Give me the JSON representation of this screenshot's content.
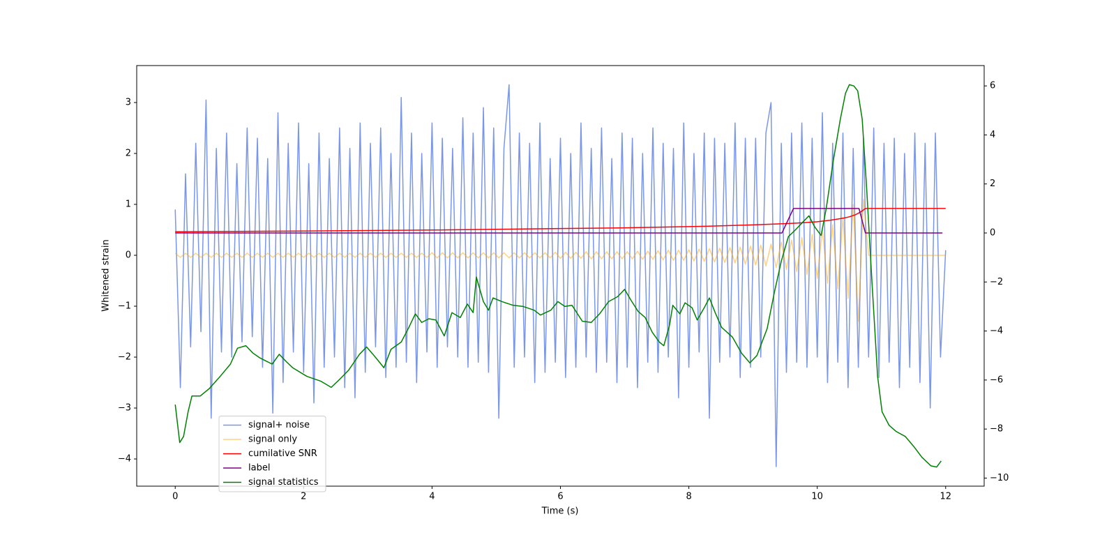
{
  "chart_data": {
    "type": "line",
    "xlabel": "Time (s)",
    "ylabel": "Whitened strain",
    "xlim": [
      -0.6,
      12.6
    ],
    "ylim": [
      -4.534,
      3.726
    ],
    "y2lim": [
      -10.33,
      6.83
    ],
    "xticks": [
      0,
      2,
      4,
      6,
      8,
      10,
      12
    ],
    "yticks": [
      {
        "value": -4,
        "label": "−4"
      },
      {
        "value": -3,
        "label": "−3"
      },
      {
        "value": -2,
        "label": "−2"
      },
      {
        "value": -1,
        "label": "−1"
      },
      0,
      1,
      2,
      3
    ],
    "y2ticks": [
      {
        "value": -10,
        "label": "−10"
      },
      {
        "value": -8,
        "label": "−8"
      },
      {
        "value": -6,
        "label": "−6"
      },
      {
        "value": -4,
        "label": "−4"
      },
      {
        "value": -2,
        "label": "−2"
      },
      0,
      2,
      4,
      6
    ],
    "legend": "lower left",
    "series": [
      {
        "name": "signal+ noise",
        "color": "#4169e1",
        "opacity": 0.7,
        "x": [
          0,
          0.08,
          0.16,
          0.24,
          0.32,
          0.4,
          0.48,
          0.56,
          0.64,
          0.72,
          0.8,
          0.88,
          0.96,
          1.04,
          1.12,
          1.2,
          1.28,
          1.36,
          1.44,
          1.52,
          1.6,
          1.68,
          1.76,
          1.84,
          1.92,
          2,
          2.08,
          2.16,
          2.24,
          2.32,
          2.4,
          2.48,
          2.56,
          2.64,
          2.72,
          2.8,
          2.88,
          2.96,
          3.04,
          3.12,
          3.2,
          3.28,
          3.36,
          3.44,
          3.52,
          3.6,
          3.68,
          3.76,
          3.84,
          3.92,
          4,
          4.08,
          4.16,
          4.24,
          4.32,
          4.4,
          4.48,
          4.56,
          4.64,
          4.72,
          4.8,
          4.88,
          4.96,
          5.04,
          5.12,
          5.2,
          5.28,
          5.36,
          5.44,
          5.52,
          5.6,
          5.68,
          5.76,
          5.84,
          5.92,
          6,
          6.08,
          6.16,
          6.24,
          6.32,
          6.4,
          6.48,
          6.56,
          6.64,
          6.72,
          6.8,
          6.88,
          6.96,
          7.04,
          7.12,
          7.2,
          7.28,
          7.36,
          7.44,
          7.52,
          7.6,
          7.68,
          7.76,
          7.84,
          7.92,
          8,
          8.08,
          8.16,
          8.24,
          8.32,
          8.4,
          8.48,
          8.56,
          8.64,
          8.72,
          8.8,
          8.88,
          8.96,
          9.04,
          9.12,
          9.2,
          9.28,
          9.36,
          9.44,
          9.52,
          9.6,
          9.68,
          9.76,
          9.84,
          9.92,
          10,
          10.08,
          10.16,
          10.24,
          10.32,
          10.4,
          10.48,
          10.56,
          10.64,
          10.72,
          10.8,
          10.88,
          10.96,
          11.04,
          11.12,
          11.2,
          11.28,
          11.36,
          11.44,
          11.52,
          11.6,
          11.68,
          11.76,
          11.84,
          11.92,
          12
        ],
        "values": [
          0.9,
          -2.6,
          1.6,
          -1.8,
          2.2,
          -1.5,
          3.05,
          -3.2,
          2.1,
          -1.9,
          2.4,
          -2.0,
          1.8,
          -1.7,
          2.5,
          -1.6,
          2.3,
          -2.2,
          1.9,
          -3.1,
          2.8,
          -2.5,
          2.2,
          -1.9,
          2.6,
          -2.3,
          1.8,
          -2.9,
          2.4,
          -2.2,
          1.9,
          -2.0,
          2.5,
          -2.6,
          2.1,
          -2.8,
          2.6,
          -2.3,
          2.2,
          -1.8,
          2.5,
          -2.4,
          2.0,
          -2.2,
          3.1,
          -2.1,
          2.4,
          -2.5,
          2.0,
          -1.9,
          2.6,
          -2.2,
          2.3,
          -1.8,
          2.1,
          -2.0,
          2.7,
          -2.2,
          2.4,
          -2.1,
          2.9,
          -2.3,
          2.5,
          -3.2,
          2.1,
          3.35,
          -2.2,
          2.4,
          -2.0,
          2.2,
          -2.5,
          2.6,
          -2.3,
          1.9,
          -2.1,
          2.3,
          -2.4,
          2.0,
          -2.2,
          2.6,
          -2.0,
          2.1,
          -2.3,
          2.5,
          -2.1,
          1.9,
          -2.5,
          2.4,
          -2.2,
          2.3,
          -2.6,
          2.0,
          -2.1,
          2.5,
          -2.3,
          2.2,
          -2.0,
          2.1,
          -2.8,
          2.6,
          -2.2,
          2.0,
          -1.9,
          2.4,
          -3.2,
          2.3,
          -2.1,
          2.2,
          -2.0,
          2.6,
          -2.4,
          2.3,
          -2.2,
          2.3,
          -2.0,
          2.4,
          3.0,
          -4.15,
          2.2,
          -2.3,
          2.4,
          -2.1,
          2.6,
          -2.2,
          2.3,
          -2.0,
          2.8,
          -2.5,
          2.2,
          -2.1,
          2.4,
          -2.6,
          2.1,
          -2.2,
          2.3,
          -2.0,
          2.5,
          -2.4,
          2.2,
          -2.1,
          2.3,
          -2.6,
          2.0,
          -2.2,
          2.4,
          -2.5,
          2.2,
          -3.0,
          2.4,
          -2.0,
          0.1
        ]
      },
      {
        "name": "signal only",
        "color": "#ffa500",
        "opacity": 0.5,
        "x": [
          0,
          0.08,
          0.16,
          0.24,
          0.32,
          0.4,
          0.48,
          0.56,
          0.64,
          0.72,
          0.8,
          0.88,
          0.96,
          1.04,
          1.12,
          1.2,
          1.28,
          1.36,
          1.44,
          1.52,
          1.6,
          1.68,
          1.76,
          1.84,
          1.92,
          2,
          2.08,
          2.16,
          2.24,
          2.32,
          2.4,
          2.48,
          2.56,
          2.64,
          2.72,
          2.8,
          2.88,
          2.96,
          3.04,
          3.12,
          3.2,
          3.28,
          3.36,
          3.44,
          3.52,
          3.6,
          3.68,
          3.76,
          3.84,
          3.92,
          4,
          4.08,
          4.16,
          4.24,
          4.32,
          4.4,
          4.48,
          4.56,
          4.64,
          4.72,
          4.8,
          4.88,
          4.96,
          5.04,
          5.12,
          5.2,
          5.28,
          5.36,
          5.44,
          5.52,
          5.6,
          5.68,
          5.76,
          5.84,
          5.92,
          6,
          6.08,
          6.16,
          6.24,
          6.32,
          6.4,
          6.48,
          6.56,
          6.64,
          6.72,
          6.8,
          6.88,
          6.96,
          7.04,
          7.12,
          7.2,
          7.28,
          7.36,
          7.44,
          7.52,
          7.6,
          7.68,
          7.76,
          7.84,
          7.92,
          8,
          8.08,
          8.16,
          8.24,
          8.32,
          8.4,
          8.48,
          8.56,
          8.64,
          8.72,
          8.8,
          8.88,
          8.96,
          9.04,
          9.12,
          9.2,
          9.28,
          9.36,
          9.44,
          9.52,
          9.6,
          9.68,
          9.76,
          9.84,
          9.92,
          10,
          10.08,
          10.16,
          10.24,
          10.32,
          10.4,
          10.48,
          10.56,
          10.64,
          10.72,
          10.8,
          10.88,
          10.96,
          11.04,
          11.12,
          11.2,
          11.28,
          11.36,
          11.44,
          11.52,
          11.6,
          11.68,
          11.76,
          11.84,
          11.92,
          12
        ],
        "values": [
          0.04,
          -0.04,
          0.04,
          -0.04,
          0.04,
          -0.04,
          0.04,
          -0.04,
          0.04,
          -0.04,
          0.04,
          -0.04,
          0.04,
          -0.04,
          0.04,
          -0.04,
          0.04,
          -0.04,
          0.04,
          -0.04,
          0.04,
          -0.04,
          0.04,
          -0.04,
          0.04,
          -0.04,
          0.04,
          -0.04,
          0.04,
          -0.04,
          0.04,
          -0.04,
          0.04,
          -0.04,
          0.04,
          -0.04,
          0.04,
          -0.04,
          0.04,
          -0.04,
          0.04,
          -0.04,
          0.04,
          -0.04,
          0.04,
          -0.04,
          0.04,
          -0.04,
          0.04,
          -0.04,
          0.05,
          -0.05,
          0.05,
          -0.05,
          0.05,
          -0.05,
          0.05,
          -0.05,
          0.05,
          -0.05,
          0.05,
          -0.05,
          0.05,
          -0.05,
          0.05,
          -0.05,
          0.05,
          -0.05,
          0.05,
          -0.05,
          0.05,
          -0.05,
          0.05,
          -0.05,
          0.06,
          -0.06,
          0.06,
          -0.06,
          0.06,
          -0.06,
          0.07,
          -0.07,
          0.07,
          -0.07,
          0.07,
          -0.07,
          0.07,
          -0.07,
          0.07,
          -0.07,
          0.08,
          -0.08,
          0.08,
          -0.08,
          0.09,
          -0.09,
          0.1,
          -0.1,
          0.1,
          -0.1,
          0.11,
          -0.11,
          0.12,
          -0.12,
          0.13,
          -0.13,
          0.14,
          -0.14,
          0.15,
          -0.15,
          0.16,
          -0.17,
          0.18,
          -0.19,
          0.2,
          -0.21,
          0.22,
          -0.24,
          0.26,
          -0.28,
          0.3,
          -0.32,
          0.35,
          -0.38,
          0.41,
          -0.45,
          0.5,
          -0.55,
          0.6,
          -0.66,
          0.75,
          -0.85,
          1.0,
          -1.3,
          1.1,
          0,
          0,
          0,
          0,
          0,
          0,
          0,
          0,
          0,
          0,
          0,
          0,
          0,
          0,
          0,
          0
        ]
      },
      {
        "name": "cumilative SNR",
        "color": "#ff0000",
        "axis": "y2",
        "x": [
          0,
          2,
          4,
          6,
          7,
          8,
          8.5,
          9,
          9.5,
          9.8,
          10,
          10.2,
          10.4,
          10.5,
          10.6,
          10.65,
          10.7,
          10.75,
          12
        ],
        "values": [
          0.05,
          0.08,
          0.12,
          0.18,
          0.21,
          0.26,
          0.29,
          0.33,
          0.38,
          0.42,
          0.46,
          0.52,
          0.6,
          0.66,
          0.75,
          0.82,
          0.9,
          1.0,
          1.0
        ]
      },
      {
        "name": "label",
        "color": "#800080",
        "axis": "y2",
        "x": [
          0,
          9.45,
          9.63,
          10.65,
          10.75,
          11.95
        ],
        "values": [
          0,
          0,
          1,
          1,
          0,
          0
        ]
      },
      {
        "name": "signal statistics",
        "color": "#008000",
        "axis": "y2",
        "x": [
          0,
          0.07,
          0.13,
          0.2,
          0.26,
          0.39,
          0.53,
          0.7,
          0.86,
          0.97,
          1.1,
          1.21,
          1.32,
          1.51,
          1.62,
          1.73,
          1.83,
          2.05,
          2.27,
          2.43,
          2.55,
          2.7,
          2.87,
          2.98,
          3.08,
          3.19,
          3.25,
          3.36,
          3.52,
          3.63,
          3.74,
          3.84,
          3.95,
          4.06,
          4.19,
          4.31,
          4.44,
          4.55,
          4.64,
          4.69,
          4.8,
          4.88,
          4.95,
          5.09,
          5.26,
          5.42,
          5.59,
          5.69,
          5.85,
          5.96,
          6.07,
          6.18,
          6.34,
          6.48,
          6.61,
          6.75,
          6.89,
          7.0,
          7.1,
          7.21,
          7.32,
          7.43,
          7.54,
          7.61,
          7.7,
          7.75,
          7.86,
          7.94,
          8.05,
          8.13,
          8.24,
          8.32,
          8.41,
          8.51,
          8.68,
          8.82,
          8.95,
          9.06,
          9.22,
          9.33,
          9.44,
          9.55,
          9.65,
          9.76,
          9.87,
          9.96,
          10.06,
          10.14,
          10.25,
          10.36,
          10.44,
          10.5,
          10.57,
          10.63,
          10.7,
          10.77,
          10.85,
          10.94,
          11.01,
          11.12,
          11.23,
          11.37,
          11.5,
          11.63,
          11.77,
          11.86,
          11.93
        ],
        "values": [
          -7.0,
          -8.55,
          -8.3,
          -7.3,
          -6.65,
          -6.65,
          -6.35,
          -5.85,
          -5.35,
          -4.7,
          -4.6,
          -4.9,
          -5.1,
          -5.35,
          -4.95,
          -5.25,
          -5.5,
          -5.85,
          -6.05,
          -6.3,
          -6.0,
          -5.6,
          -4.95,
          -4.65,
          -4.95,
          -5.3,
          -5.5,
          -4.75,
          -4.45,
          -3.9,
          -3.3,
          -3.65,
          -3.5,
          -3.55,
          -4.2,
          -3.25,
          -3.45,
          -2.9,
          -3.25,
          -1.8,
          -2.8,
          -3.15,
          -2.65,
          -2.8,
          -2.95,
          -3.0,
          -3.15,
          -3.35,
          -3.15,
          -2.8,
          -3.0,
          -2.95,
          -3.6,
          -3.65,
          -3.3,
          -2.8,
          -2.6,
          -2.3,
          -2.75,
          -3.2,
          -3.45,
          -4.05,
          -4.45,
          -4.6,
          -3.75,
          -2.95,
          -3.3,
          -2.85,
          -3.05,
          -3.55,
          -3.05,
          -2.65,
          -3.25,
          -3.85,
          -4.25,
          -4.9,
          -5.3,
          -5.0,
          -3.9,
          -2.45,
          -1.15,
          -0.15,
          0.1,
          0.4,
          0.7,
          0.25,
          -0.1,
          1.0,
          2.95,
          4.65,
          5.7,
          6.05,
          6.0,
          5.8,
          4.65,
          1.8,
          -1.9,
          -5.85,
          -7.3,
          -7.85,
          -8.1,
          -8.3,
          -8.7,
          -9.15,
          -9.5,
          -9.55,
          -9.3
        ]
      }
    ]
  }
}
